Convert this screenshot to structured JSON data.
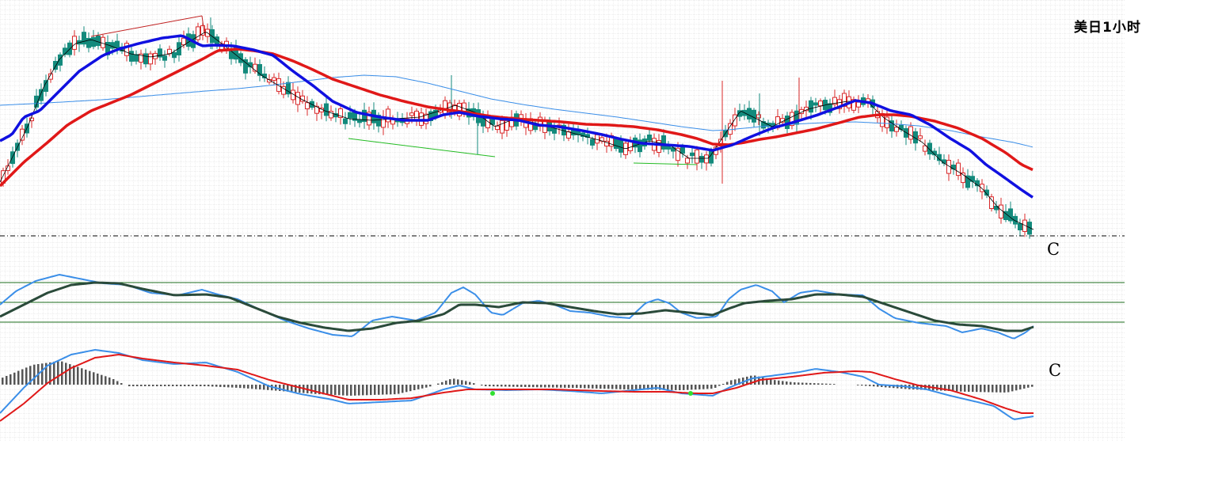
{
  "chart_data": {
    "type": "candlestick",
    "title": "美日1小时",
    "annotations": [
      "C",
      "C"
    ],
    "grid": true,
    "legend": "none",
    "colors": {
      "up_candle": "#d8282a",
      "down_candle": "#138a7c",
      "ma_fast": "#000000",
      "ma_mid": "#1010e0",
      "ma_slow": "#e01818",
      "ma_long": "#3a8ee8",
      "osc_fast": "#3a8ee8",
      "osc_slow": "#2a4a3a",
      "macd_line": "#3a8ee8",
      "signal_line": "#e01818",
      "histogram": "#555555",
      "trendline_up": "#c02020",
      "trendline_down": "#22bb22",
      "reference_lines": "#1e6e1e"
    }
  }
}
